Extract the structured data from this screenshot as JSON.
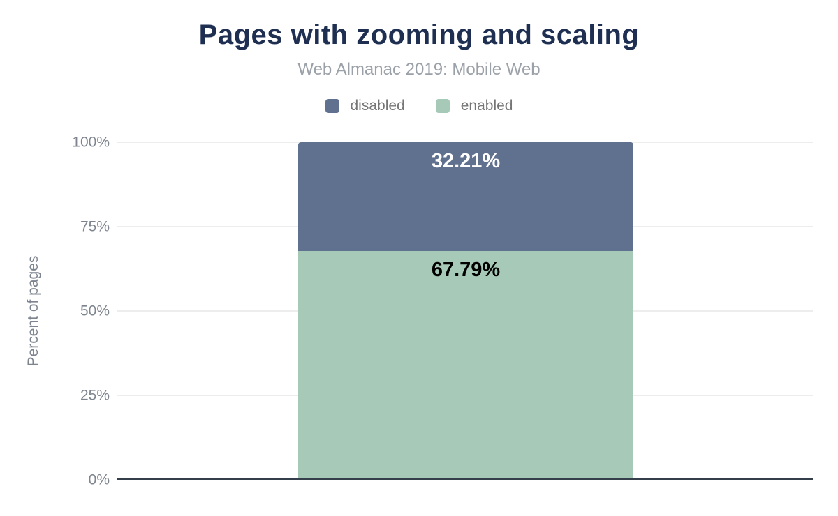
{
  "header": {
    "title": "Pages with zooming and scaling",
    "subtitle": "Web Almanac 2019: Mobile Web"
  },
  "legend": {
    "items": [
      {
        "label": "disabled",
        "color": "#60708f"
      },
      {
        "label": "enabled",
        "color": "#a7c9b7"
      }
    ]
  },
  "y_axis": {
    "title": "Percent of pages",
    "ticks": [
      "0%",
      "25%",
      "50%",
      "75%",
      "100%"
    ]
  },
  "chart_data": {
    "type": "bar",
    "stacked": true,
    "categories": [
      ""
    ],
    "series": [
      {
        "name": "disabled",
        "values": [
          32.21
        ],
        "color": "#60708f",
        "label": "32.21%",
        "label_color": "#ffffff"
      },
      {
        "name": "enabled",
        "values": [
          67.79
        ],
        "color": "#a7c9b7",
        "label": "67.79%",
        "label_color": "#000000"
      }
    ],
    "title": "Pages with zooming and scaling",
    "subtitle": "Web Almanac 2019: Mobile Web",
    "xlabel": "",
    "ylabel": "Percent of pages",
    "ylim": [
      0,
      100
    ],
    "yticks": [
      0,
      25,
      50,
      75,
      100
    ],
    "ytick_labels": [
      "0%",
      "25%",
      "50%",
      "75%",
      "100%"
    ],
    "grid": true,
    "legend_position": "top"
  },
  "colors": {
    "title_text": "#1e2f52",
    "subtitle_text": "#9ba1a8",
    "axis_text": "#7d848e",
    "legend_text": "#757575",
    "gridline": "#ededed",
    "baseline": "#343f4b",
    "background": "#ffffff"
  }
}
